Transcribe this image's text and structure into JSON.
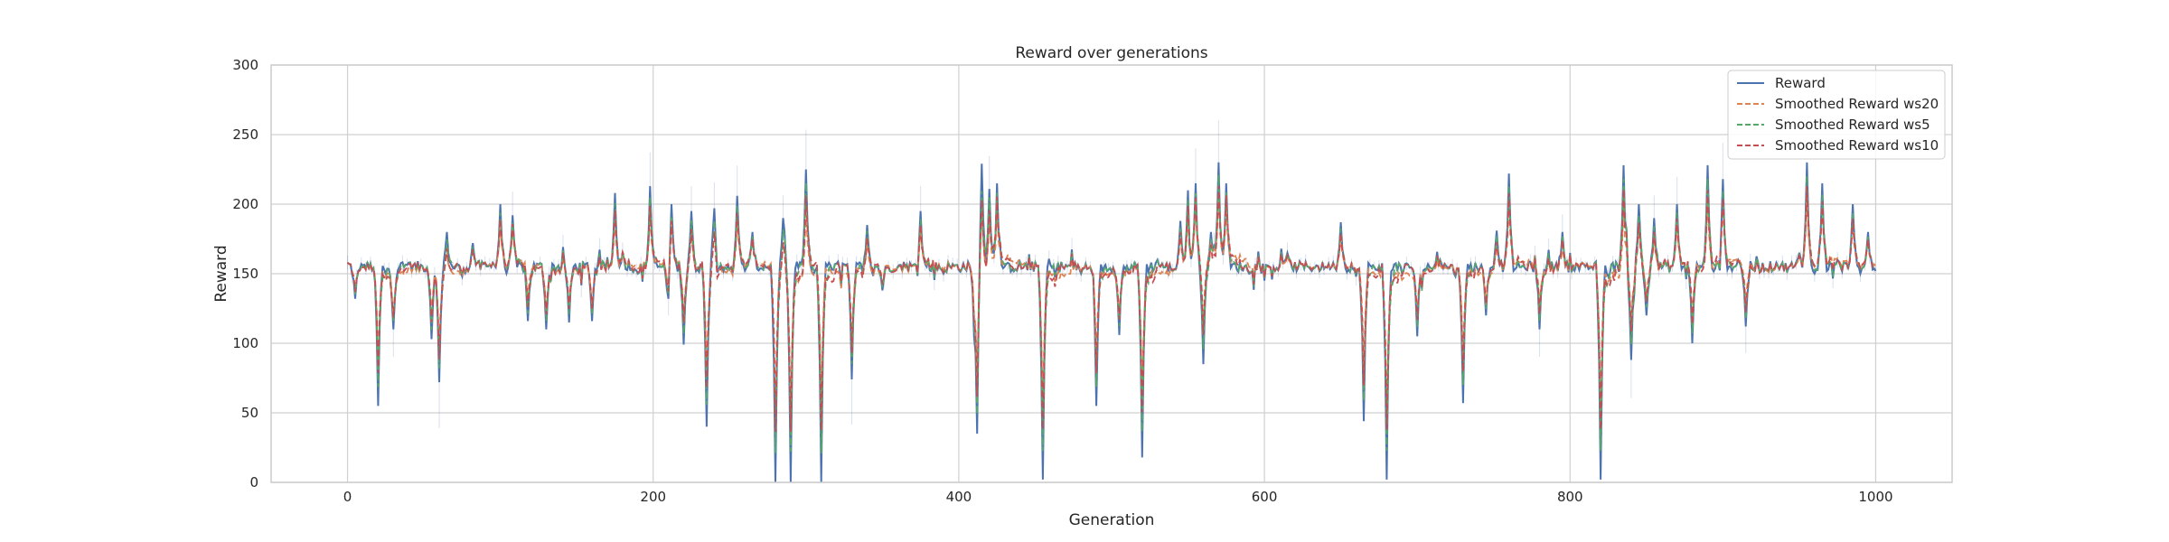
{
  "chart_data": {
    "type": "line",
    "title": "Reward over generations",
    "xlabel": "Generation",
    "ylabel": "Reward",
    "xlim": [
      -50,
      1050
    ],
    "ylim": [
      0,
      300
    ],
    "xticks": [
      0,
      200,
      400,
      600,
      800,
      1000
    ],
    "yticks": [
      0,
      50,
      100,
      150,
      200,
      250,
      300
    ],
    "grid": true,
    "legend_position": "top-right",
    "baseline": 155,
    "n_points": 1001,
    "key_points": [
      [
        0,
        158
      ],
      [
        5,
        132
      ],
      [
        10,
        156
      ],
      [
        20,
        55
      ],
      [
        25,
        150
      ],
      [
        30,
        110
      ],
      [
        40,
        158
      ],
      [
        55,
        103
      ],
      [
        60,
        72
      ],
      [
        65,
        180
      ],
      [
        75,
        148
      ],
      [
        82,
        172
      ],
      [
        95,
        158
      ],
      [
        100,
        200
      ],
      [
        108,
        192
      ],
      [
        118,
        116
      ],
      [
        130,
        110
      ],
      [
        145,
        115
      ],
      [
        160,
        116
      ],
      [
        175,
        208
      ],
      [
        180,
        165
      ],
      [
        190,
        150
      ],
      [
        198,
        213
      ],
      [
        210,
        120
      ],
      [
        212,
        200
      ],
      [
        220,
        99
      ],
      [
        225,
        195
      ],
      [
        235,
        40
      ],
      [
        240,
        197
      ],
      [
        250,
        153
      ],
      [
        255,
        206
      ],
      [
        265,
        180
      ],
      [
        280,
        0
      ],
      [
        285,
        190
      ],
      [
        290,
        0
      ],
      [
        300,
        225
      ],
      [
        305,
        150
      ],
      [
        310,
        0
      ],
      [
        315,
        158
      ],
      [
        330,
        74
      ],
      [
        340,
        185
      ],
      [
        350,
        138
      ],
      [
        360,
        155
      ],
      [
        375,
        195
      ],
      [
        390,
        150
      ],
      [
        410,
        117
      ],
      [
        412,
        35
      ],
      [
        415,
        229
      ],
      [
        420,
        211
      ],
      [
        425,
        215
      ],
      [
        430,
        155
      ],
      [
        455,
        2
      ],
      [
        480,
        150
      ],
      [
        490,
        55
      ],
      [
        505,
        106
      ],
      [
        520,
        18
      ],
      [
        530,
        160
      ],
      [
        540,
        152
      ],
      [
        545,
        188
      ],
      [
        550,
        210
      ],
      [
        555,
        215
      ],
      [
        560,
        85
      ],
      [
        565,
        180
      ],
      [
        570,
        230
      ],
      [
        575,
        215
      ],
      [
        590,
        150
      ],
      [
        600,
        145
      ],
      [
        615,
        165
      ],
      [
        640,
        155
      ],
      [
        645,
        158
      ],
      [
        650,
        187
      ],
      [
        660,
        148
      ],
      [
        665,
        44
      ],
      [
        670,
        155
      ],
      [
        680,
        2
      ],
      [
        690,
        150
      ],
      [
        700,
        105
      ],
      [
        715,
        160
      ],
      [
        725,
        148
      ],
      [
        730,
        57
      ],
      [
        745,
        120
      ],
      [
        752,
        181
      ],
      [
        760,
        222
      ],
      [
        770,
        155
      ],
      [
        780,
        110
      ],
      [
        795,
        180
      ],
      [
        810,
        155
      ],
      [
        820,
        2
      ],
      [
        825,
        148
      ],
      [
        835,
        228
      ],
      [
        840,
        88
      ],
      [
        845,
        200
      ],
      [
        850,
        120
      ],
      [
        855,
        190
      ],
      [
        870,
        200
      ],
      [
        880,
        100
      ],
      [
        890,
        228
      ],
      [
        900,
        218
      ],
      [
        910,
        160
      ],
      [
        915,
        112
      ],
      [
        935,
        158
      ],
      [
        950,
        165
      ],
      [
        955,
        230
      ],
      [
        960,
        150
      ],
      [
        965,
        215
      ],
      [
        975,
        160
      ],
      [
        985,
        200
      ],
      [
        990,
        150
      ],
      [
        995,
        180
      ],
      [
        1000,
        152
      ]
    ],
    "series": [
      {
        "name": "Reward",
        "color": "#4c72b0",
        "dash": "solid"
      },
      {
        "name": "Smoothed Reward ws20",
        "color": "#dd8452",
        "dash": "dashed"
      },
      {
        "name": "Smoothed Reward ws5",
        "color": "#55a868",
        "dash": "dashed"
      },
      {
        "name": "Smoothed Reward ws10",
        "color": "#c44e52",
        "dash": "dashed"
      }
    ]
  }
}
